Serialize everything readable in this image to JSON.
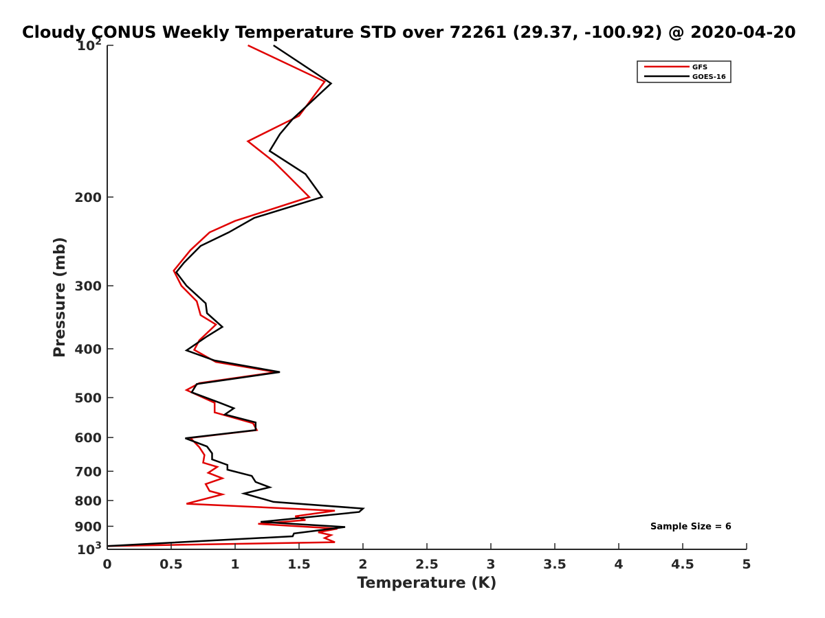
{
  "chart_data": {
    "type": "line",
    "title": "Cloudy CONUS Weekly Temperature STD over 72261 (29.37, -100.92) @ 2020-04-20",
    "xlabel": "Temperature (K)",
    "ylabel": "Pressure (mb)",
    "xlim": [
      0,
      5
    ],
    "ylim": [
      100,
      1000
    ],
    "y_scale": "log",
    "y_reversed": true,
    "grid": false,
    "legend_position": "top-right",
    "x_ticks": [
      {
        "value": 0,
        "label": "0"
      },
      {
        "value": 0.5,
        "label": "0.5"
      },
      {
        "value": 1,
        "label": "1"
      },
      {
        "value": 1.5,
        "label": "1.5"
      },
      {
        "value": 2,
        "label": "2"
      },
      {
        "value": 2.5,
        "label": "2.5"
      },
      {
        "value": 3,
        "label": "3"
      },
      {
        "value": 3.5,
        "label": "3.5"
      },
      {
        "value": 4,
        "label": "4"
      },
      {
        "value": 4.5,
        "label": "4.5"
      },
      {
        "value": 5,
        "label": "5"
      }
    ],
    "y_ticks": [
      {
        "value": 100,
        "base": "10",
        "exp": "2"
      },
      {
        "value": 200,
        "label": "200"
      },
      {
        "value": 300,
        "label": "300"
      },
      {
        "value": 400,
        "label": "400"
      },
      {
        "value": 500,
        "label": "500"
      },
      {
        "value": 600,
        "label": "600"
      },
      {
        "value": 700,
        "label": "700"
      },
      {
        "value": 800,
        "label": "800"
      },
      {
        "value": 900,
        "label": "900"
      },
      {
        "value": 1000,
        "base": "10",
        "exp": "3"
      }
    ],
    "series": [
      {
        "name": "GFS",
        "color": "#e00000",
        "points": [
          [
            1.1,
            100
          ],
          [
            1.7,
            118
          ],
          [
            1.5,
            138
          ],
          [
            1.1,
            155
          ],
          [
            1.3,
            170
          ],
          [
            1.4,
            180
          ],
          [
            1.58,
            200
          ],
          [
            1.0,
            223
          ],
          [
            0.8,
            235
          ],
          [
            0.65,
            255
          ],
          [
            0.52,
            280
          ],
          [
            0.58,
            300
          ],
          [
            0.7,
            322
          ],
          [
            0.73,
            343
          ],
          [
            0.85,
            358
          ],
          [
            0.72,
            385
          ],
          [
            0.68,
            402
          ],
          [
            0.85,
            425
          ],
          [
            1.32,
            445
          ],
          [
            0.72,
            468
          ],
          [
            0.62,
            483
          ],
          [
            0.84,
            512
          ],
          [
            0.84,
            535
          ],
          [
            1.14,
            562
          ],
          [
            1.17,
            580
          ],
          [
            0.65,
            601
          ],
          [
            0.72,
            627
          ],
          [
            0.76,
            650
          ],
          [
            0.75,
            673
          ],
          [
            0.86,
            686
          ],
          [
            0.79,
            705
          ],
          [
            0.9,
            723
          ],
          [
            0.77,
            742
          ],
          [
            0.8,
            766
          ],
          [
            0.9,
            778
          ],
          [
            0.62,
            812
          ],
          [
            1.78,
            838
          ],
          [
            1.47,
            860
          ],
          [
            1.55,
            875
          ],
          [
            1.18,
            890
          ],
          [
            1.8,
            910
          ],
          [
            1.65,
            925
          ],
          [
            1.75,
            937
          ],
          [
            1.7,
            950
          ],
          [
            1.78,
            968
          ],
          [
            0,
            985
          ]
        ]
      },
      {
        "name": "GOES-16",
        "color": "#000000",
        "points": [
          [
            1.3,
            100
          ],
          [
            1.75,
            119
          ],
          [
            1.45,
            140
          ],
          [
            1.35,
            150
          ],
          [
            1.27,
            162
          ],
          [
            1.55,
            180
          ],
          [
            1.68,
            200
          ],
          [
            1.15,
            220
          ],
          [
            0.95,
            235
          ],
          [
            0.73,
            250
          ],
          [
            0.6,
            270
          ],
          [
            0.54,
            282
          ],
          [
            0.62,
            300
          ],
          [
            0.77,
            325
          ],
          [
            0.78,
            340
          ],
          [
            0.9,
            362
          ],
          [
            0.78,
            378
          ],
          [
            0.62,
            403
          ],
          [
            0.84,
            422
          ],
          [
            1.35,
            445
          ],
          [
            0.7,
            470
          ],
          [
            0.66,
            488
          ],
          [
            0.88,
            512
          ],
          [
            0.99,
            525
          ],
          [
            0.92,
            540
          ],
          [
            1.16,
            560
          ],
          [
            1.16,
            580
          ],
          [
            0.61,
            602
          ],
          [
            0.78,
            625
          ],
          [
            0.82,
            645
          ],
          [
            0.82,
            663
          ],
          [
            0.94,
            680
          ],
          [
            0.94,
            695
          ],
          [
            1.13,
            715
          ],
          [
            1.16,
            735
          ],
          [
            1.27,
            753
          ],
          [
            1.07,
            775
          ],
          [
            1.3,
            805
          ],
          [
            2.0,
            830
          ],
          [
            1.97,
            843
          ],
          [
            1.2,
            882
          ],
          [
            1.86,
            903
          ],
          [
            1.46,
            930
          ],
          [
            1.45,
            942
          ],
          [
            0,
            985
          ]
        ]
      }
    ],
    "legend": [
      "GFS",
      "GOES-16"
    ],
    "annotation": "Sample Size = 6"
  }
}
